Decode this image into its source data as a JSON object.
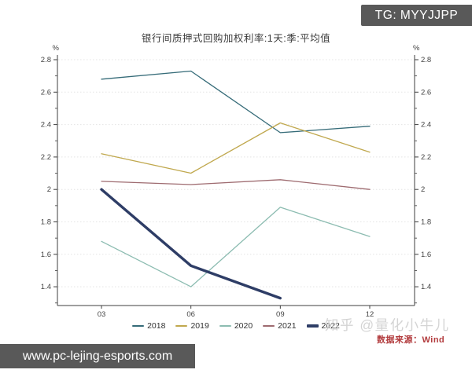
{
  "header": {
    "tg_badge": "TG: MYYJJPP"
  },
  "footer": {
    "url_watermark": "www.pc-lejing-esports.com"
  },
  "watermarks": {
    "site": "知乎 @量化小牛儿"
  },
  "colors": {
    "badge_bg": "#595959",
    "urlbar_bg": "#595959",
    "watermark_gray": "#d4d4d4",
    "source_red": "#b23b3d",
    "axis": "#3f3f3f",
    "grid": "#e4e4e4",
    "background": "#ffffff"
  },
  "chart_data": {
    "type": "line",
    "title": "银行间质押式回购加权利率:1天:季:平均值",
    "xlabel": "",
    "ylabel": "%",
    "unit_label_left": "%",
    "unit_label_right": "%",
    "categories": [
      "03",
      "06",
      "09",
      "12"
    ],
    "ylim": [
      1.28,
      2.83
    ],
    "y_ticks": [
      2.8,
      2.6,
      2.4,
      2.2,
      2.0,
      1.8,
      1.6,
      1.4
    ],
    "y_tick_labels": [
      "2.8",
      "2.6",
      "2.4",
      "2.2",
      "2",
      "1.8",
      "1.6",
      "1.4"
    ],
    "grid": true,
    "legend_position": "bottom",
    "series": [
      {
        "name": "2018",
        "color": "#356b78",
        "width": 1.3,
        "values": [
          2.68,
          2.73,
          2.35,
          2.39
        ]
      },
      {
        "name": "2019",
        "color": "#c0a84e",
        "width": 1.3,
        "values": [
          2.22,
          2.1,
          2.41,
          2.23
        ]
      },
      {
        "name": "2020",
        "color": "#8cbcb1",
        "width": 1.3,
        "values": [
          1.68,
          1.4,
          1.89,
          1.71
        ]
      },
      {
        "name": "2021",
        "color": "#9e6b70",
        "width": 1.3,
        "values": [
          2.05,
          2.03,
          2.06,
          2.0
        ]
      },
      {
        "name": "2022",
        "color": "#2e3d66",
        "width": 3.4,
        "values": [
          2.0,
          1.53,
          1.33,
          null
        ]
      }
    ],
    "source_label": "数据来源：Wind"
  }
}
